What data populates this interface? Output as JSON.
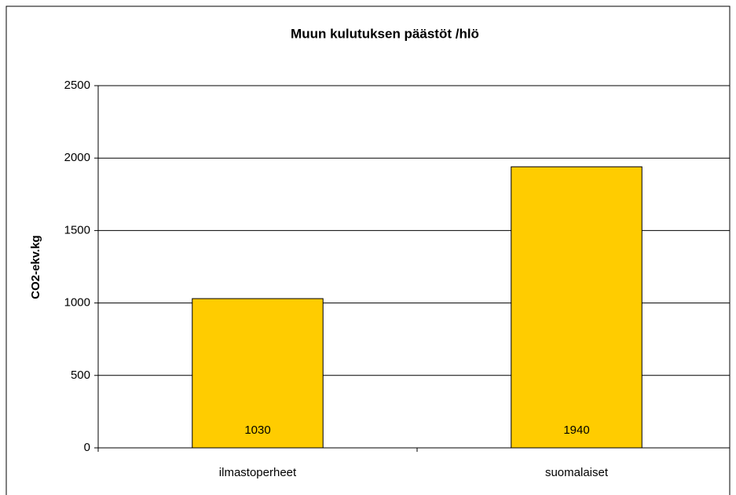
{
  "chart_data": {
    "type": "bar",
    "title": "Muun kulutuksen päästöt /hlö",
    "ylabel": "CO2-ekv.kg",
    "categories": [
      "ilmastoperheet",
      "suomalaiset"
    ],
    "values": [
      1030,
      1940
    ],
    "color": "#ffcc00",
    "ylim": [
      0,
      2500
    ],
    "yticks": [
      0,
      500,
      1000,
      1500,
      2000,
      2500
    ],
    "grid": true
  }
}
